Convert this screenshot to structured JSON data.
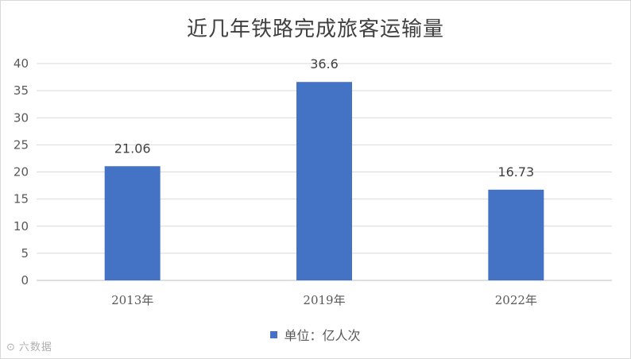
{
  "chart_data": {
    "type": "bar",
    "title": "近几年铁路完成旅客运输量",
    "categories": [
      "2013年",
      "2019年",
      "2022年"
    ],
    "series": [
      {
        "name": "单位：亿人次",
        "values": [
          21.06,
          36.6,
          16.73
        ],
        "data_labels": [
          "21.06",
          "36.6",
          "16.73"
        ]
      }
    ],
    "ylim": [
      0,
      40
    ],
    "yticks": [
      0,
      5,
      10,
      15,
      20,
      25,
      30,
      35,
      40
    ],
    "grid": true,
    "legend_position": "bottom",
    "bar_color": "#4472c4",
    "grid_color": "#d9d9d9"
  },
  "watermark": {
    "icon": "sina-weibo-icon",
    "text": "六数据"
  }
}
